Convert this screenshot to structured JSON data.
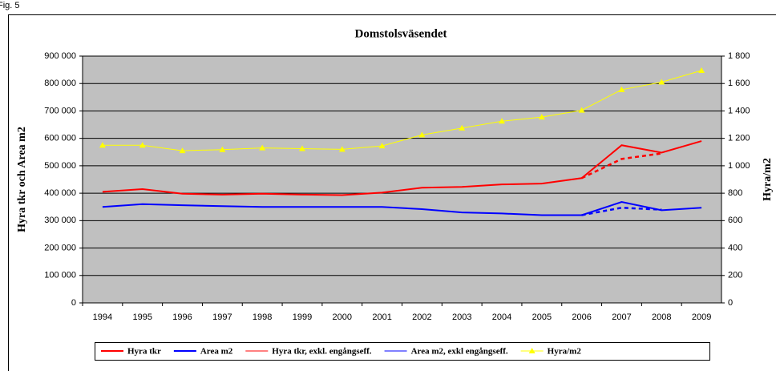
{
  "caption": "Fig. 5",
  "chart_data": {
    "type": "line",
    "title": "Domstolsväsendet",
    "y_label": "Hyra tkr och Area m2",
    "y2_label": "Hyra/m2",
    "categories": [
      "1994",
      "1995",
      "1996",
      "1997",
      "1998",
      "1999",
      "2000",
      "2001",
      "2002",
      "2003",
      "2004",
      "2005",
      "2006",
      "2007",
      "2008",
      "2009"
    ],
    "ylim": [
      0,
      900000
    ],
    "yticks": [
      {
        "value": 0,
        "label": "0"
      },
      {
        "value": 100000,
        "label": "100 000"
      },
      {
        "value": 200000,
        "label": "200 000"
      },
      {
        "value": 300000,
        "label": "300 000"
      },
      {
        "value": 400000,
        "label": "400 000"
      },
      {
        "value": 500000,
        "label": "500 000"
      },
      {
        "value": 600000,
        "label": "600 000"
      },
      {
        "value": 700000,
        "label": "700 000"
      },
      {
        "value": 800000,
        "label": "800 000"
      },
      {
        "value": 900000,
        "label": "900 000"
      }
    ],
    "y2lim": [
      0,
      1800
    ],
    "y2ticks": [
      {
        "value": 0,
        "label": "0"
      },
      {
        "value": 200,
        "label": "200"
      },
      {
        "value": 400,
        "label": "400"
      },
      {
        "value": 600,
        "label": "600"
      },
      {
        "value": 800,
        "label": "800"
      },
      {
        "value": 1000,
        "label": "1 000"
      },
      {
        "value": 1200,
        "label": "1 200"
      },
      {
        "value": 1400,
        "label": "1 400"
      },
      {
        "value": 1600,
        "label": "1 600"
      },
      {
        "value": 1800,
        "label": "1 800"
      }
    ],
    "grid": true,
    "series": [
      {
        "name": "Hyra tkr",
        "color": "#ff0000",
        "values": [
          405000,
          415000,
          398000,
          395000,
          398000,
          395000,
          393000,
          402000,
          420000,
          423000,
          432000,
          435000,
          455000,
          575000,
          548000,
          590000
        ]
      },
      {
        "name": "Area m2",
        "color": "#0000ff",
        "values": [
          350000,
          360000,
          356000,
          353000,
          350000,
          350000,
          350000,
          350000,
          342000,
          330000,
          326000,
          320000,
          320000,
          368000,
          338000,
          347000
        ]
      },
      {
        "name": "Hyra tkr, exkl. engångseff.",
        "color": "#ff0000",
        "dashed": true,
        "values": [
          null,
          null,
          null,
          null,
          null,
          null,
          null,
          null,
          null,
          null,
          null,
          null,
          455000,
          525000,
          545000,
          null
        ]
      },
      {
        "name": "Area m2, exkl engångseff.",
        "color": "#0000ff",
        "dashed": true,
        "values": [
          null,
          null,
          null,
          null,
          null,
          null,
          null,
          null,
          null,
          null,
          null,
          null,
          320000,
          347000,
          340000,
          null
        ]
      },
      {
        "name": "Hyra/m2",
        "color": "#ffff00",
        "axis": "y2",
        "marker": "triangle",
        "values": [
          1150,
          1150,
          1110,
          1118,
          1130,
          1125,
          1120,
          1145,
          1225,
          1275,
          1325,
          1355,
          1405,
          1555,
          1610,
          1695
        ]
      }
    ]
  }
}
